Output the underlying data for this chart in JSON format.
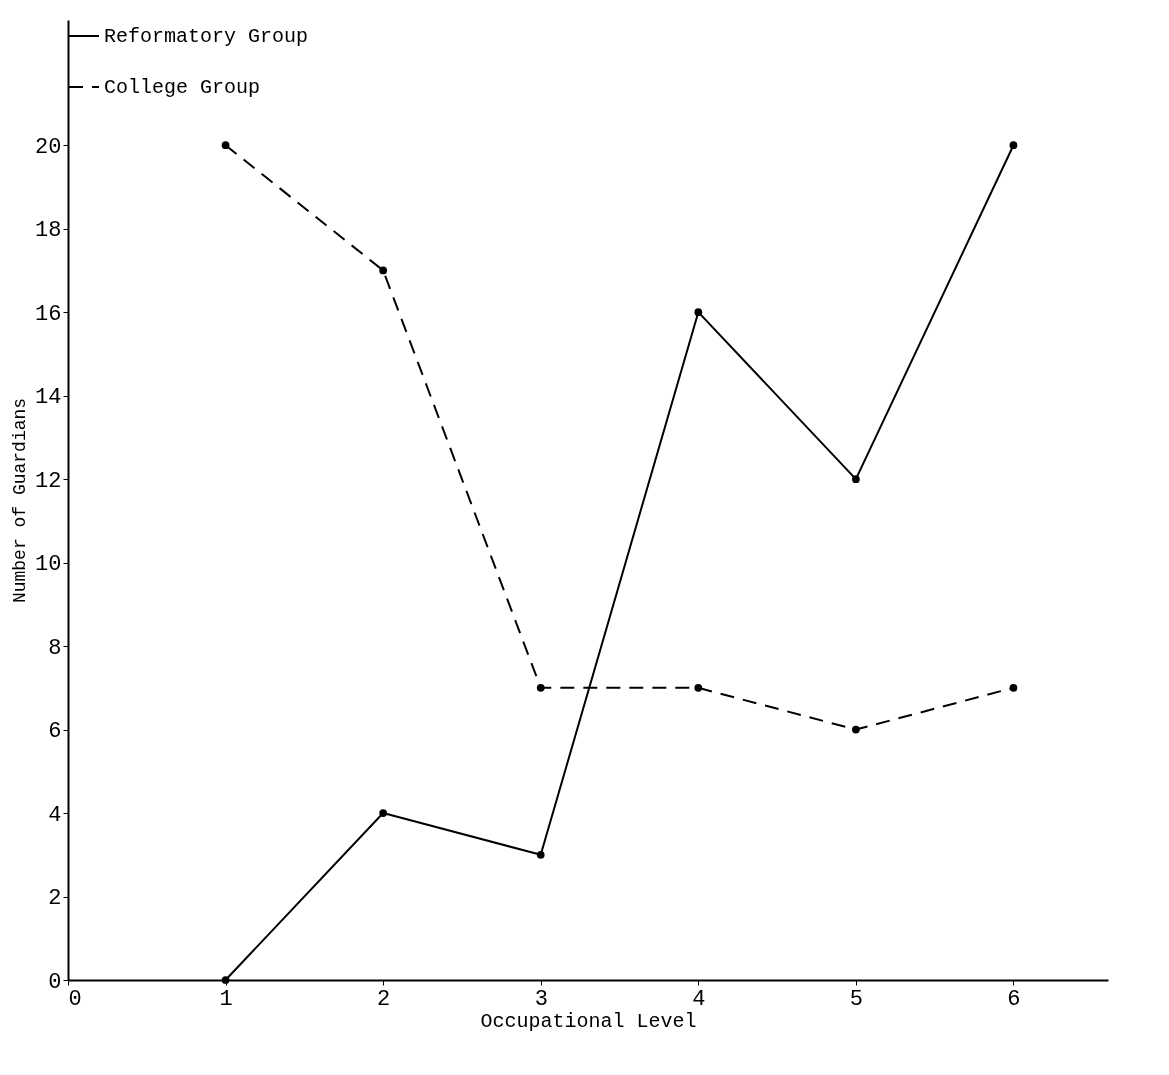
{
  "chart_data": {
    "type": "line",
    "xlabel": "Occupational Level",
    "ylabel": "Number of Guardians",
    "x": [
      1,
      2,
      3,
      4,
      5,
      6
    ],
    "series": [
      {
        "name": "Reformatory Group",
        "color": "#000000",
        "line_style": "solid",
        "values": [
          0,
          4,
          3,
          16,
          12,
          20
        ]
      },
      {
        "name": "College Group",
        "color": "#000000",
        "line_style": "dashed",
        "values": [
          20,
          17,
          7,
          7,
          6,
          7
        ]
      }
    ],
    "xlim": [
      0,
      6.6
    ],
    "ylim": [
      0,
      23
    ],
    "xticks": [
      0,
      1,
      2,
      3,
      4,
      5,
      6
    ],
    "yticks": [
      0,
      2,
      4,
      6,
      8,
      10,
      12,
      14,
      16,
      18,
      20
    ],
    "marker": "circle",
    "grid": false,
    "legend": "top left"
  }
}
